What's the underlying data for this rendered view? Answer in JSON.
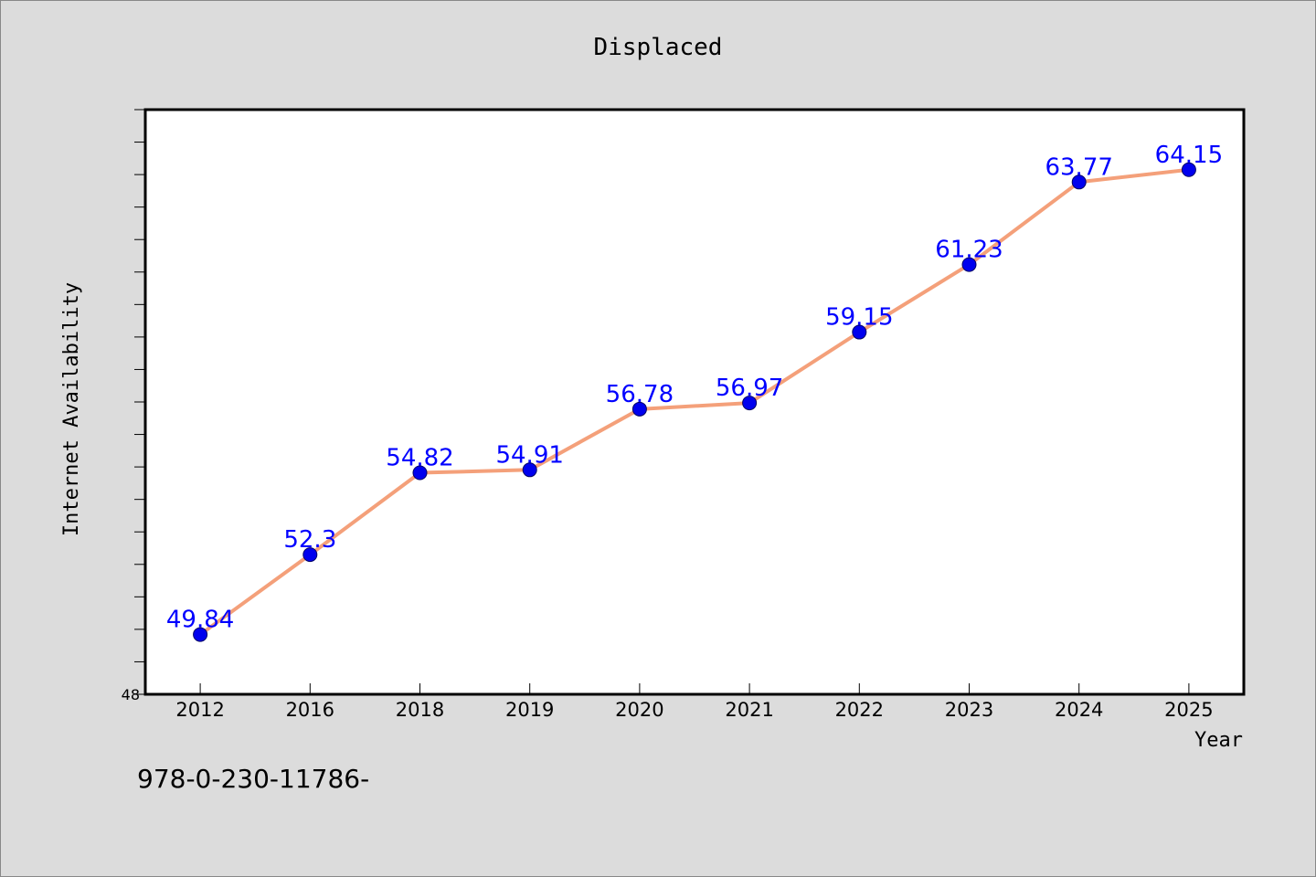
{
  "chart_data": {
    "type": "line",
    "title": "Displaced",
    "xlabel": "Year",
    "ylabel": "Internet Availability",
    "categories": [
      "2012",
      "2016",
      "2018",
      "2019",
      "2020",
      "2021",
      "2022",
      "2023",
      "2024",
      "2025"
    ],
    "series": [
      {
        "values": [
          49.84,
          52.3,
          54.82,
          54.91,
          56.78,
          56.97,
          59.15,
          61.23,
          63.77,
          64.15
        ],
        "data_labels": [
          "49.84",
          "52.3",
          "54.82",
          "54.91",
          "56.78",
          "56.97",
          "59.15",
          "61.23",
          "63.77",
          "64.15"
        ],
        "line_color": "#f4a07a",
        "marker_color": "#0000ee"
      }
    ],
    "ylim": [
      48,
      66
    ],
    "y_tick_labels": [
      "48"
    ],
    "y_minor_tick_step": 1,
    "grid": false,
    "legend": "none",
    "label_color": "#0000ff"
  },
  "footer_text": "978-0-230-11786-"
}
